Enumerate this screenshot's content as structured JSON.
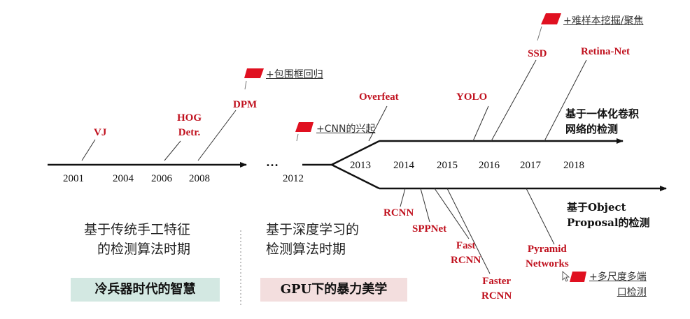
{
  "timeline": {
    "years_traditional": [
      "2001",
      "2004",
      "2006",
      "2008"
    ],
    "ellipsis": "…",
    "year_split": "2012",
    "years_deep": [
      "2013",
      "2014",
      "2015",
      "2016",
      "2017",
      "2018"
    ]
  },
  "methods": {
    "vj": "VJ",
    "hog": [
      "HOG",
      "Detr."
    ],
    "dpm": "DPM",
    "overfeat": "Overfeat",
    "yolo": "YOLO",
    "ssd": "SSD",
    "retina": "Retina-Net",
    "rcnn": "RCNN",
    "sppnet": "SPPNet",
    "fast_rcnn": [
      "Fast",
      "RCNN"
    ],
    "faster_rcnn": [
      "Faster",
      "RCNN"
    ],
    "fpn": [
      "Pyramid",
      "Networks"
    ]
  },
  "notes": {
    "bbox": "+包围框回归",
    "cnn": "+CNN的兴起",
    "hard": "+难样本挖掘/聚焦",
    "multiscale": [
      "+多尺度多端",
      "口检测"
    ]
  },
  "branches": {
    "one_stage": [
      "基于一体化卷积",
      "网络的检测"
    ],
    "two_stage": [
      "基于Object",
      "Proposal的检测"
    ]
  },
  "eras": {
    "traditional": [
      "基于传统手工特征",
      "的检测算法时期"
    ],
    "deep": [
      "基于深度学习的",
      "检测算法时期"
    ]
  },
  "boxes": {
    "traditional": "冷兵器时代的智慧",
    "deep": "GPU下的暴力美学"
  },
  "colors": {
    "flag": "#e01020",
    "method_text": "#c0111e",
    "box_traditional": "#d3e8e2",
    "box_deep": "#f3dede",
    "arrow": "#111111"
  }
}
